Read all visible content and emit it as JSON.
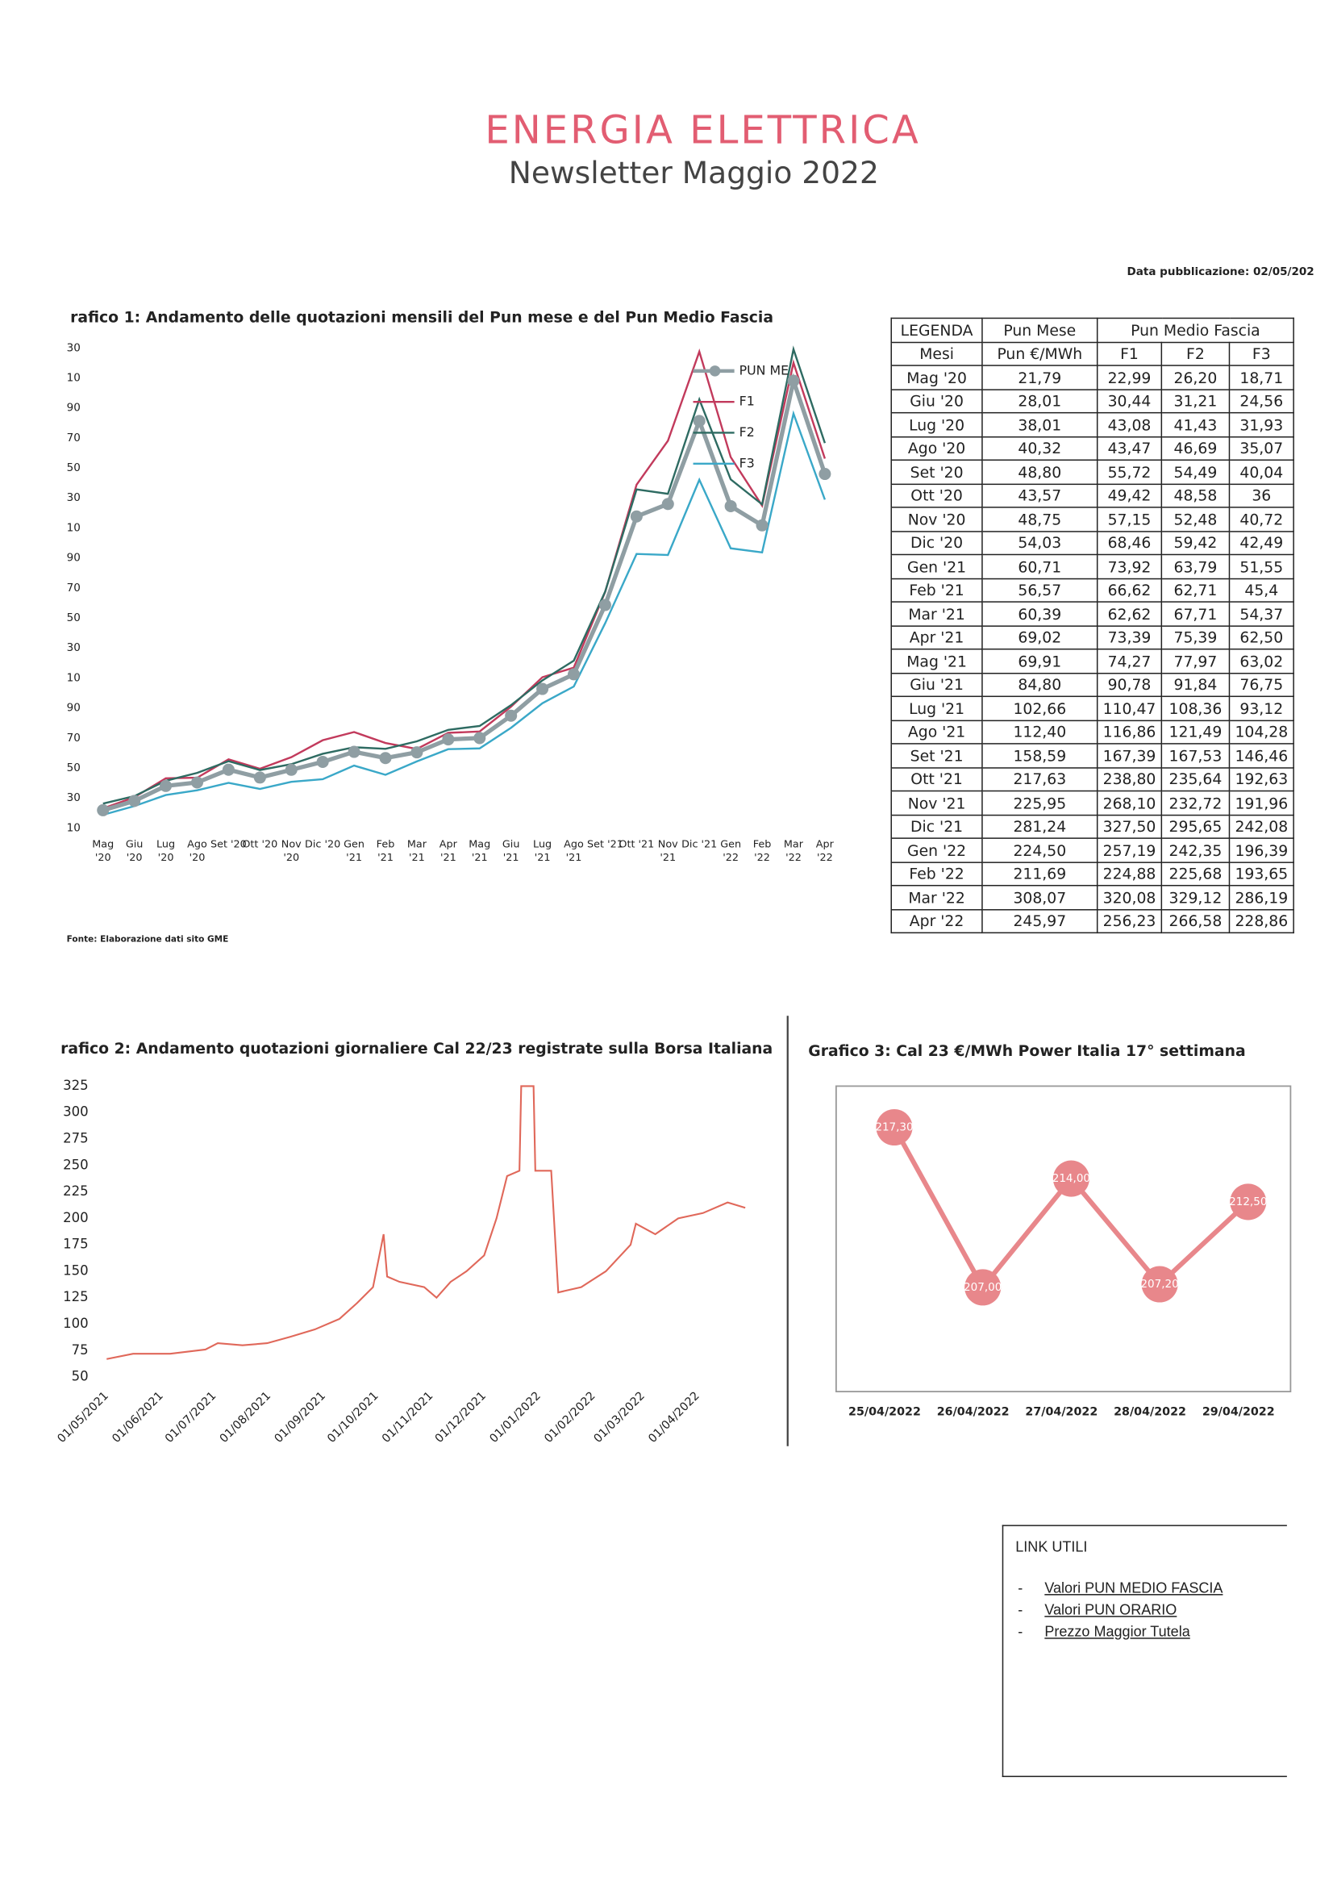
{
  "header": {
    "title": "ENERGIA ELETTRICA",
    "subtitle": "Newsletter Maggio 2022",
    "date": "Data pubblicazione: 02/05/202"
  },
  "chart_data": [
    {
      "type": "line",
      "title": "rafico 1: Andamento delle quotazioni mensili del Pun mese e del Pun Medio Fascia",
      "categories": [
        "Mag '20",
        "Giu '20",
        "Lug '20",
        "Ago '20",
        "Set '20",
        "Ott '20",
        "Nov '20",
        "Dic '20",
        "Gen '21",
        "Feb '21",
        "Mar '21",
        "Apr '21",
        "Mag '21",
        "Giu '21",
        "Lug '21",
        "Ago '21",
        "Set '21",
        "Ott '21",
        "Nov '21",
        "Dic '21",
        "Gen '22",
        "Feb '22",
        "Mar '22",
        "Apr '22"
      ],
      "ylim": [
        10,
        330
      ],
      "yticks": [
        10,
        30,
        50,
        70,
        90,
        {
          "value": 110,
          "label": "10"
        },
        {
          "value": 130,
          "label": "30"
        },
        {
          "value": 150,
          "label": "50"
        },
        {
          "value": 170,
          "label": "70"
        },
        {
          "value": 190,
          "label": "90"
        },
        {
          "value": 210,
          "label": "10"
        },
        {
          "value": 230,
          "label": "30"
        },
        {
          "value": 250,
          "label": "50"
        },
        {
          "value": 270,
          "label": "70"
        },
        {
          "value": 290,
          "label": "90"
        },
        {
          "value": 310,
          "label": "10"
        },
        {
          "value": 330,
          "label": "30"
        }
      ],
      "series": [
        {
          "name": "PUN ME",
          "color": "#8f9ea3",
          "marker": true,
          "values": [
            21.79,
            28.01,
            38.01,
            40.32,
            48.8,
            43.57,
            48.75,
            54.03,
            60.71,
            56.57,
            60.39,
            69.02,
            69.91,
            84.8,
            102.66,
            112.4,
            158.59,
            217.63,
            225.95,
            281.24,
            224.5,
            211.69,
            308.07,
            245.97
          ],
          "value_labels": [
            "21,79",
            "28,01",
            "38,01",
            "40,32",
            "48,80",
            "43,57",
            "48,75",
            "54,03",
            "60,71",
            "56,57",
            "60,39",
            "69,02",
            "69,91",
            "84,80",
            "102,66",
            "112,40",
            "158,59",
            "217,63",
            "225,95",
            "281,24",
            "224,50",
            "211,69",
            "308,07",
            "245,97"
          ]
        },
        {
          "name": "F1",
          "color": "#c23a5c",
          "marker": false,
          "values": [
            22.99,
            30.44,
            43.08,
            43.47,
            55.72,
            49.42,
            57.15,
            68.46,
            73.92,
            66.62,
            62.62,
            73.39,
            74.27,
            90.78,
            110.47,
            116.86,
            167.39,
            238.8,
            268.1,
            327.5,
            257.19,
            224.88,
            320.08,
            256.23
          ],
          "value_labels": [
            "22,99",
            "30,44",
            "43,08",
            "43,47",
            "55,72",
            "49,42",
            "57,15",
            "68,46",
            "73,92",
            "66,62",
            "62,62",
            "73,39",
            "74,27",
            "90,78",
            "110,47",
            "116,86",
            "167,39",
            "238,80",
            "268,10",
            "327,50",
            "257,19",
            "224,88",
            "320,08",
            "256,23"
          ]
        },
        {
          "name": "F2",
          "color": "#2e6b62",
          "marker": false,
          "values": [
            26.2,
            31.21,
            41.43,
            46.69,
            54.49,
            48.58,
            52.48,
            59.42,
            63.79,
            62.71,
            67.71,
            75.39,
            77.97,
            91.84,
            108.36,
            121.49,
            167.53,
            235.64,
            232.72,
            295.65,
            242.35,
            225.68,
            329.12,
            266.58
          ],
          "value_labels": [
            "26,20",
            "31,21",
            "41,43",
            "46,69",
            "54,49",
            "48,58",
            "52,48",
            "59,42",
            "63,79",
            "62,71",
            "67,71",
            "75,39",
            "77,97",
            "91,84",
            "108,36",
            "121,49",
            "167,53",
            "235,64",
            "232,72",
            "295,65",
            "242,35",
            "225,68",
            "329,12",
            "266,58"
          ]
        },
        {
          "name": "F3",
          "color": "#3aa8c8",
          "marker": false,
          "values": [
            18.71,
            24.56,
            31.93,
            35.07,
            40.04,
            36,
            40.72,
            42.49,
            51.55,
            45.4,
            54.37,
            62.5,
            63.02,
            76.75,
            93.12,
            104.28,
            146.46,
            192.63,
            191.96,
            242.08,
            196.39,
            193.65,
            286.19,
            228.86
          ],
          "value_labels": [
            "18,71",
            "24,56",
            "31,93",
            "35,07",
            "40,04",
            "36",
            "40,72",
            "42,49",
            "51,55",
            "45,4",
            "54,37",
            "62,50",
            "63,02",
            "76,75",
            "93,12",
            "104,28",
            "146,46",
            "192,63",
            "191,96",
            "242,08",
            "196,39",
            "193,65",
            "286,19",
            "228,86"
          ]
        }
      ]
    },
    {
      "type": "date-line",
      "title": "rafico 2: Andamento quotazioni giornaliere Cal 22/23 registrate sulla Borsa Italiana",
      "color": "#e0685a",
      "x": [
        "01/05/2021",
        "16/05/2021",
        "06/06/2021",
        "26/06/2021",
        "03/07/2021",
        "17/07/2021",
        "31/07/2021",
        "13/08/2021",
        "27/08/2021",
        "10/09/2021",
        "20/09/2021",
        "29/09/2021",
        "05/10/2021",
        "07/10/2021",
        "14/10/2021",
        "28/10/2021",
        "04/11/2021",
        "12/11/2021",
        "21/11/2021",
        "01/12/2021",
        "08/12/2021",
        "14/12/2021",
        "21/12/2021",
        "22/12/2021",
        "29/12/2021",
        "30/12/2021",
        "08/01/2022",
        "12/01/2022",
        "25/01/2022",
        "08/02/2022",
        "22/02/2022",
        "25/02/2022",
        "08/03/2022",
        "21/03/2022",
        "04/04/2022",
        "18/04/2022",
        "28/04/2022"
      ],
      "values": [
        67,
        72,
        72,
        76,
        82,
        80,
        82,
        88,
        95,
        105,
        120,
        135,
        185,
        145,
        140,
        135,
        125,
        140,
        150,
        165,
        200,
        240,
        245,
        325,
        325,
        245,
        245,
        130,
        135,
        150,
        175,
        195,
        185,
        200,
        205,
        215,
        210
      ],
      "xlim": [
        "01/05/2021",
        "28/04/2022"
      ],
      "xticks": [
        "01/05/2021",
        "01/06/2021",
        "01/07/2021",
        "01/08/2021",
        "01/09/2021",
        "01/10/2021",
        "01/11/2021",
        "01/12/2021",
        "01/01/2022",
        "01/02/2022",
        "01/03/2022",
        "01/04/2022"
      ],
      "ylim": [
        50,
        325
      ],
      "yticks": [
        50,
        75,
        100,
        125,
        150,
        175,
        200,
        225,
        250,
        275,
        300,
        325
      ]
    },
    {
      "type": "marker-line",
      "title": "Grafico 3: Cal 23 €/MWh Power Italia 17° settimana",
      "color": "#e8878b",
      "categories": [
        "25/04/2022",
        "26/04/2022",
        "27/04/2022",
        "28/04/2022",
        "29/04/2022"
      ],
      "values": [
        217.3,
        207,
        214,
        207.2,
        212.5
      ],
      "value_labels": [
        "217,30",
        "207,00",
        "214,00",
        "207,20",
        "212,50"
      ]
    }
  ],
  "table": {
    "headers": [
      "LEGENDA",
      "Pun Mese",
      "Pun Medio Fascia"
    ],
    "subheaders": [
      "Mesi",
      "Pun €/MWh"
    ]
  },
  "source": "Fonte: Elaborazione dati sito GME",
  "links": {
    "title": "LINK UTILI",
    "bullet": "-",
    "items": [
      "Valori PUN MEDIO FASCIA",
      "Valori PUN ORARIO",
      "Prezzo Maggior Tutela"
    ]
  }
}
